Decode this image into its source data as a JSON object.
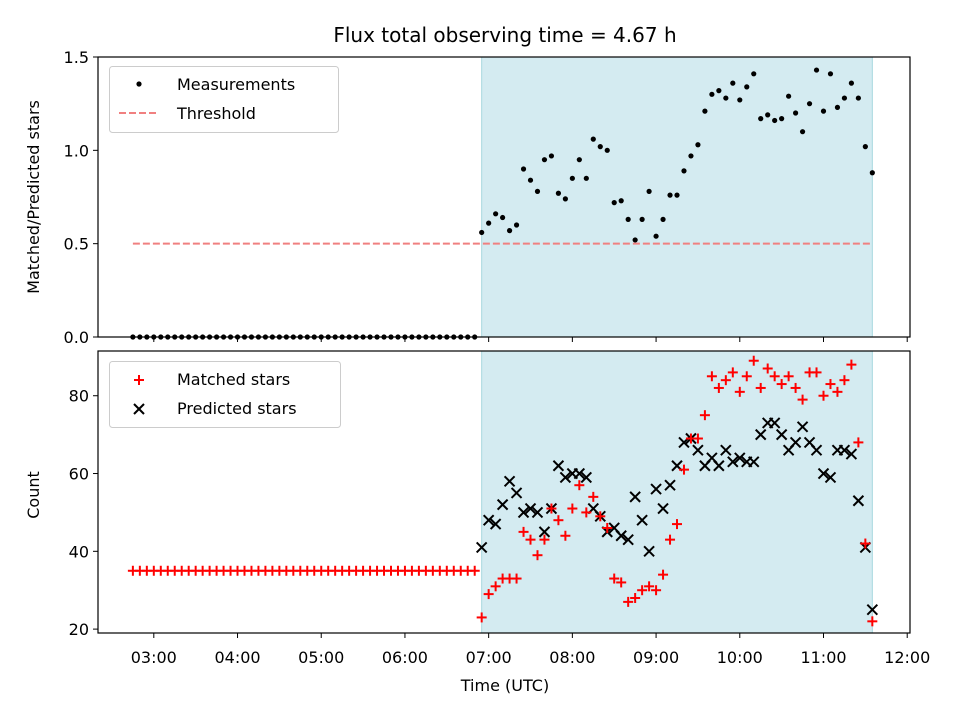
{
  "figure": {
    "title": "Flux total observing time = 4.67 h",
    "xlabel": "Time (UTC)",
    "x_ticks": [
      "03:00",
      "04:00",
      "05:00",
      "06:00",
      "07:00",
      "08:00",
      "09:00",
      "10:00",
      "11:00",
      "12:00"
    ]
  },
  "colors": {
    "shade": "#d4ebf1",
    "shade_edge": "#a6d7df",
    "threshold": "#f08080",
    "matched": "#ff0000",
    "predicted": "#000000",
    "measurements": "#000000"
  },
  "chart_data": [
    {
      "type": "scatter",
      "ylabel": "Matched/Predicted stars",
      "xlim": [
        "02:20",
        "12:02"
      ],
      "ylim": [
        0,
        1.5
      ],
      "y_ticks": [
        "0.0",
        "0.5",
        "1.0",
        "1.5"
      ],
      "legend": {
        "placement": "top-left",
        "entries": [
          "Measurements",
          "Threshold"
        ]
      },
      "shaded_span": [
        "06:55",
        "11:35"
      ],
      "threshold": {
        "value": 0.5,
        "x_range": [
          "02:45",
          "11:35"
        ]
      },
      "measurements": {
        "x": [
          "02:45",
          "02:50",
          "02:55",
          "03:00",
          "03:05",
          "03:10",
          "03:15",
          "03:20",
          "03:25",
          "03:30",
          "03:35",
          "03:40",
          "03:45",
          "03:50",
          "03:55",
          "04:00",
          "04:05",
          "04:10",
          "04:15",
          "04:20",
          "04:25",
          "04:30",
          "04:35",
          "04:40",
          "04:45",
          "04:50",
          "04:55",
          "05:00",
          "05:05",
          "05:10",
          "05:15",
          "05:20",
          "05:25",
          "05:30",
          "05:35",
          "05:40",
          "05:45",
          "05:50",
          "05:55",
          "06:00",
          "06:05",
          "06:10",
          "06:15",
          "06:20",
          "06:25",
          "06:30",
          "06:35",
          "06:40",
          "06:45",
          "06:50",
          "06:55",
          "07:00",
          "07:05",
          "07:10",
          "07:15",
          "07:20",
          "07:25",
          "07:30",
          "07:35",
          "07:40",
          "07:45",
          "07:50",
          "07:55",
          "08:00",
          "08:05",
          "08:10",
          "08:15",
          "08:20",
          "08:25",
          "08:30",
          "08:35",
          "08:40",
          "08:45",
          "08:50",
          "08:55",
          "09:00",
          "09:05",
          "09:10",
          "09:15",
          "09:20",
          "09:25",
          "09:30",
          "09:35",
          "09:40",
          "09:45",
          "09:50",
          "09:55",
          "10:00",
          "10:05",
          "10:10",
          "10:15",
          "10:20",
          "10:25",
          "10:30",
          "10:35",
          "10:40",
          "10:45",
          "10:50",
          "10:55",
          "11:00",
          "11:05",
          "11:10",
          "11:15",
          "11:20",
          "11:25",
          "11:30",
          "11:35"
        ],
        "y": [
          0,
          0,
          0,
          0,
          0,
          0,
          0,
          0,
          0,
          0,
          0,
          0,
          0,
          0,
          0,
          0,
          0,
          0,
          0,
          0,
          0,
          0,
          0,
          0,
          0,
          0,
          0,
          0,
          0,
          0,
          0,
          0,
          0,
          0,
          0,
          0,
          0,
          0,
          0,
          0,
          0,
          0,
          0,
          0,
          0,
          0,
          0,
          0,
          0,
          0,
          0.56,
          0.61,
          0.66,
          0.64,
          0.57,
          0.6,
          0.9,
          0.84,
          0.78,
          0.95,
          0.97,
          0.77,
          0.74,
          0.85,
          0.95,
          0.85,
          1.06,
          1.02,
          1.0,
          0.72,
          0.73,
          0.63,
          0.52,
          0.63,
          0.78,
          0.54,
          0.63,
          0.76,
          0.76,
          0.89,
          0.97,
          1.03,
          1.21,
          1.3,
          1.32,
          1.28,
          1.36,
          1.27,
          1.34,
          1.41,
          1.17,
          1.19,
          1.16,
          1.17,
          1.29,
          1.2,
          1.1,
          1.25,
          1.43,
          1.21,
          1.41,
          1.23,
          1.28,
          1.36,
          1.28,
          1.02,
          0.88
        ]
      }
    },
    {
      "type": "scatter",
      "ylabel": "Count",
      "xlim": [
        "02:20",
        "12:02"
      ],
      "ylim": [
        19,
        91.5
      ],
      "y_ticks": [
        "20",
        "40",
        "60",
        "80"
      ],
      "legend": {
        "placement": "top-left",
        "entries": [
          "Matched stars",
          "Predicted stars"
        ]
      },
      "shaded_span": [
        "06:55",
        "11:35"
      ],
      "series": [
        {
          "name": "Matched stars",
          "marker": "plus",
          "x": [
            "02:45",
            "02:50",
            "02:55",
            "03:00",
            "03:05",
            "03:10",
            "03:15",
            "03:20",
            "03:25",
            "03:30",
            "03:35",
            "03:40",
            "03:45",
            "03:50",
            "03:55",
            "04:00",
            "04:05",
            "04:10",
            "04:15",
            "04:20",
            "04:25",
            "04:30",
            "04:35",
            "04:40",
            "04:45",
            "04:50",
            "04:55",
            "05:00",
            "05:05",
            "05:10",
            "05:15",
            "05:20",
            "05:25",
            "05:30",
            "05:35",
            "05:40",
            "05:45",
            "05:50",
            "05:55",
            "06:00",
            "06:05",
            "06:10",
            "06:15",
            "06:20",
            "06:25",
            "06:30",
            "06:35",
            "06:40",
            "06:45",
            "06:50",
            "06:55",
            "07:00",
            "07:05",
            "07:10",
            "07:15",
            "07:20",
            "07:25",
            "07:30",
            "07:35",
            "07:40",
            "07:45",
            "07:50",
            "07:55",
            "08:00",
            "08:05",
            "08:10",
            "08:15",
            "08:20",
            "08:25",
            "08:30",
            "08:35",
            "08:40",
            "08:45",
            "08:50",
            "08:55",
            "09:00",
            "09:05",
            "09:10",
            "09:15",
            "09:20",
            "09:25",
            "09:30",
            "09:35",
            "09:40",
            "09:45",
            "09:50",
            "09:55",
            "10:00",
            "10:05",
            "10:10",
            "10:15",
            "10:20",
            "10:25",
            "10:30",
            "10:35",
            "10:40",
            "10:45",
            "10:50",
            "10:55",
            "11:00",
            "11:05",
            "11:10",
            "11:15",
            "11:20",
            "11:25",
            "11:30",
            "11:35"
          ],
          "y": [
            35,
            35,
            35,
            35,
            35,
            35,
            35,
            35,
            35,
            35,
            35,
            35,
            35,
            35,
            35,
            35,
            35,
            35,
            35,
            35,
            35,
            35,
            35,
            35,
            35,
            35,
            35,
            35,
            35,
            35,
            35,
            35,
            35,
            35,
            35,
            35,
            35,
            35,
            35,
            35,
            35,
            35,
            35,
            35,
            35,
            35,
            35,
            35,
            35,
            35,
            23,
            29,
            31,
            33,
            33,
            33,
            45,
            43,
            39,
            43,
            51,
            48,
            44,
            51,
            57,
            50,
            54,
            49,
            46,
            33,
            32,
            27,
            28,
            30,
            31,
            30,
            34,
            43,
            47,
            61,
            69,
            69,
            75,
            85,
            82,
            84,
            86,
            81,
            85,
            89,
            82,
            87,
            85,
            83,
            85,
            82,
            79,
            86,
            86,
            80,
            83,
            81,
            84,
            88,
            68,
            42,
            22
          ]
        },
        {
          "name": "Predicted stars",
          "marker": "x",
          "x": [
            "06:55",
            "07:00",
            "07:05",
            "07:10",
            "07:15",
            "07:20",
            "07:25",
            "07:30",
            "07:35",
            "07:40",
            "07:45",
            "07:50",
            "07:55",
            "08:00",
            "08:05",
            "08:10",
            "08:15",
            "08:20",
            "08:25",
            "08:30",
            "08:35",
            "08:40",
            "08:45",
            "08:50",
            "08:55",
            "09:00",
            "09:05",
            "09:10",
            "09:15",
            "09:20",
            "09:25",
            "09:30",
            "09:35",
            "09:40",
            "09:45",
            "09:50",
            "09:55",
            "10:00",
            "10:05",
            "10:10",
            "10:15",
            "10:20",
            "10:25",
            "10:30",
            "10:35",
            "10:40",
            "10:45",
            "10:50",
            "10:55",
            "11:00",
            "11:05",
            "11:10",
            "11:15",
            "11:20",
            "11:25",
            "11:30",
            "11:35"
          ],
          "y": [
            41,
            48,
            47,
            52,
            58,
            55,
            50,
            51,
            50,
            45,
            51,
            62,
            59,
            60,
            60,
            59,
            51,
            49,
            45,
            46,
            44,
            43,
            54,
            48,
            40,
            56,
            51,
            57,
            62,
            68,
            69,
            66,
            62,
            64,
            62,
            66,
            63,
            64,
            63,
            63,
            70,
            73,
            73,
            70,
            66,
            68,
            72,
            68,
            66,
            60,
            59,
            66,
            66,
            65,
            53,
            41,
            25
          ]
        }
      ]
    }
  ]
}
